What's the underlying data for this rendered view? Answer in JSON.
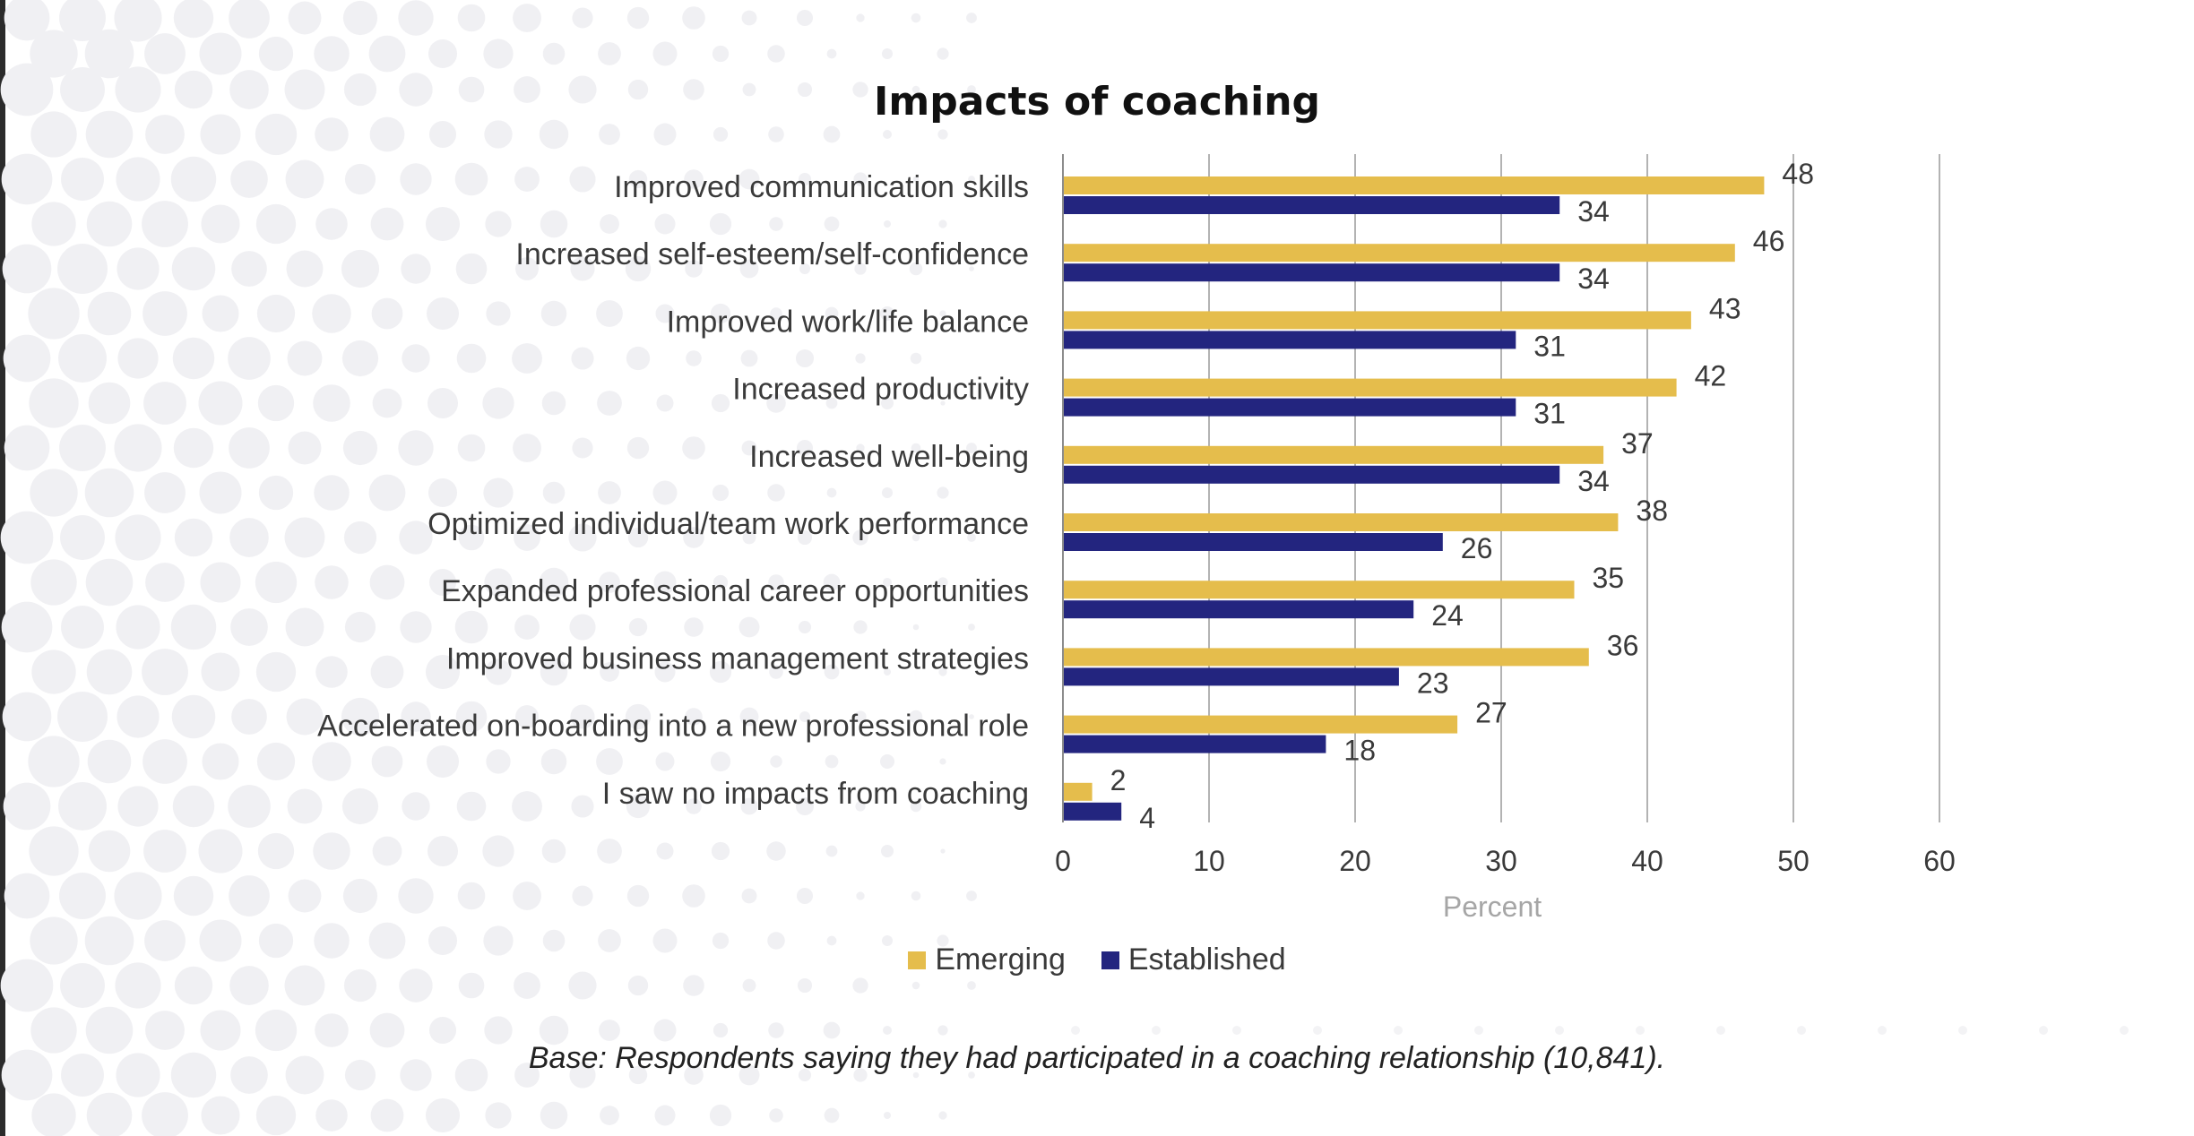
{
  "colors": {
    "emerging": "#E5BD4C",
    "established": "#23257F",
    "grid": "#b3b3b3",
    "text": "#3a3a3a"
  },
  "legend": {
    "emerging": "Emerging",
    "established": "Established"
  },
  "footnote": "Base: Respondents saying they had participated in a coaching relationship (10,841).",
  "chart_data": {
    "type": "bar",
    "orientation": "horizontal",
    "title": "Impacts of coaching",
    "xlabel": "Percent",
    "ylabel": "",
    "xlim": [
      0,
      60
    ],
    "xticks": [
      0,
      10,
      20,
      30,
      40,
      50,
      60
    ],
    "grid": true,
    "legend_position": "bottom",
    "categories": [
      "Improved communication skills",
      "Increased self-esteem/self-confidence",
      "Improved work/life balance",
      "Increased productivity",
      "Increased well-being",
      "Optimized individual/team work performance",
      "Expanded professional career opportunities",
      "Improved business management strategies",
      "Accelerated on-boarding into a new professional role",
      "I saw no impacts from coaching"
    ],
    "series": [
      {
        "name": "Emerging",
        "values": [
          48,
          46,
          43,
          42,
          37,
          38,
          35,
          36,
          27,
          2
        ]
      },
      {
        "name": "Established",
        "values": [
          34,
          34,
          31,
          31,
          34,
          26,
          24,
          23,
          18,
          4
        ]
      }
    ]
  }
}
